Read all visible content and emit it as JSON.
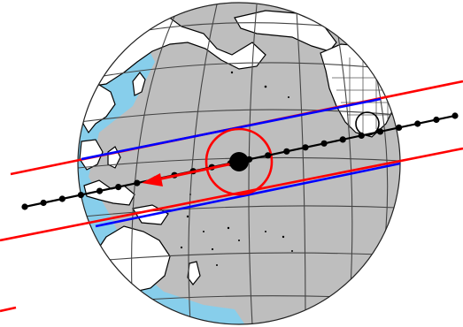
{
  "globe": {
    "ocean_color": "#bebebe",
    "swath_color": "#87ceeb",
    "land_fill": "#ffffff",
    "coast_color": "#000000",
    "graticule_color": "#444444"
  },
  "track": {
    "color": "#000000",
    "sample_count": 24
  },
  "footprint_bounds": {
    "outer_color": "#ff0000",
    "inner_color": "#0000ff"
  },
  "target": {
    "ring_color": "#ff0000",
    "marker_color": "#000000",
    "arrow_color": "#ff0000"
  },
  "ground_station": {
    "ring_color": "#000000"
  }
}
